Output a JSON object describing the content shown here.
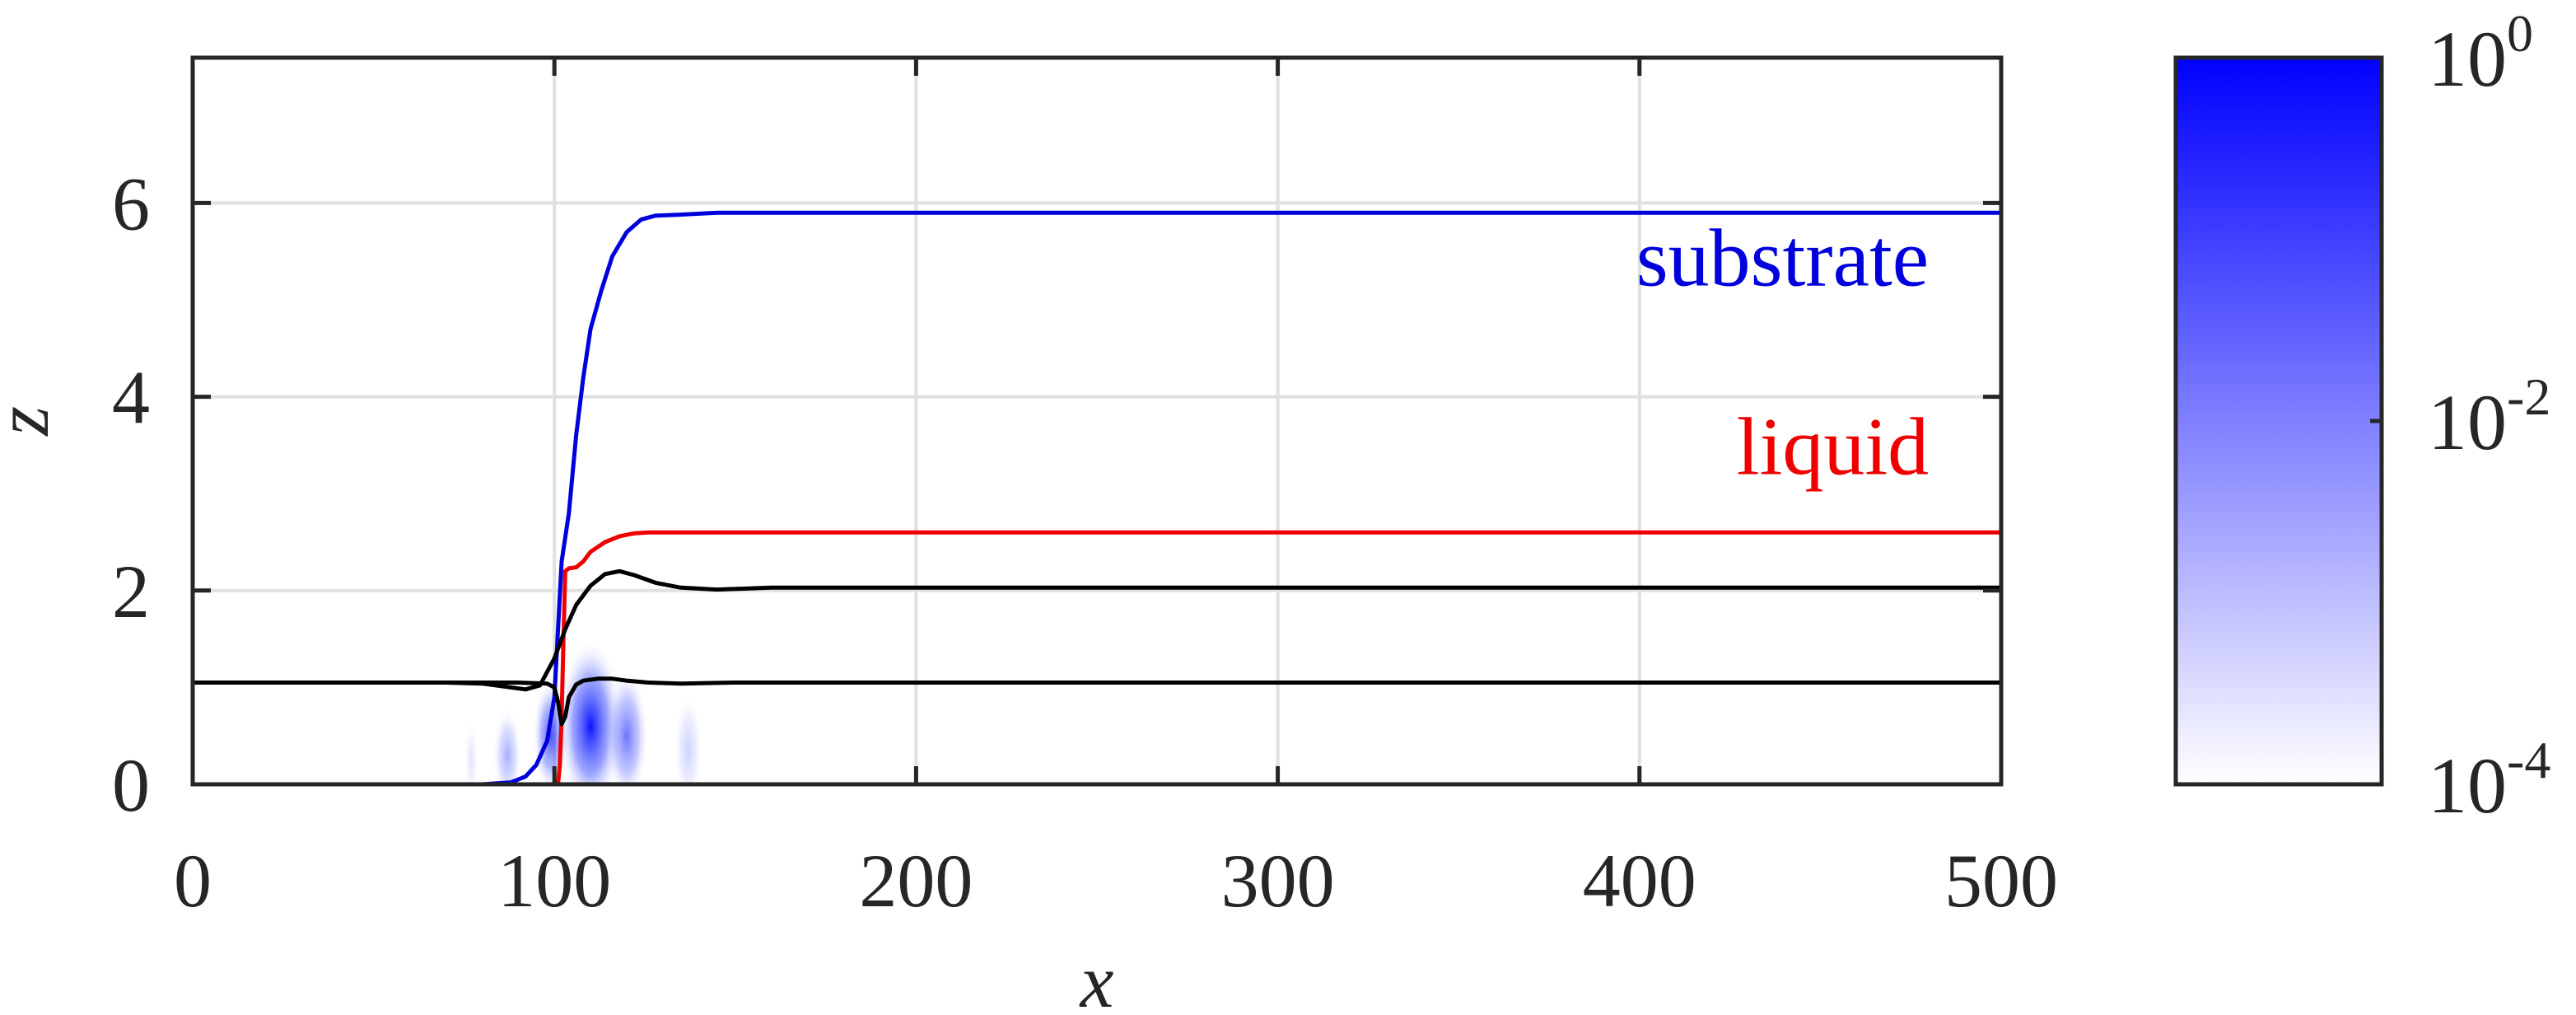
{
  "chart_data": {
    "type": "line",
    "xlabel": "x",
    "ylabel": "z",
    "xlim": [
      0,
      500
    ],
    "ylim": [
      0,
      7.5
    ],
    "xticks": [
      0,
      100,
      200,
      300,
      400,
      500
    ],
    "yticks": [
      0,
      2,
      4,
      6
    ],
    "grid": true,
    "series": [
      {
        "name": "substrate",
        "color": "#0000dd",
        "x": [
          0,
          80,
          88,
          92,
          95,
          98,
          100,
          101,
          102,
          103,
          104,
          106,
          108,
          110,
          113,
          116,
          120,
          124,
          128,
          135,
          145,
          160,
          200,
          300,
          400,
          500
        ],
        "y": [
          0,
          0,
          0.02,
          0.08,
          0.2,
          0.45,
          0.9,
          1.6,
          2.3,
          2.55,
          2.8,
          3.6,
          4.2,
          4.7,
          5.1,
          5.45,
          5.7,
          5.83,
          5.87,
          5.88,
          5.9,
          5.9,
          5.9,
          5.9,
          5.9,
          5.9
        ]
      },
      {
        "name": "liquid",
        "color": "#ee0000",
        "x": [
          0,
          101,
          101.5,
          102,
          102.5,
          103,
          104,
          106,
          108,
          110,
          114,
          118,
          122,
          126,
          135,
          150,
          200,
          300,
          400,
          500
        ],
        "y": [
          0,
          0,
          0.2,
          0.7,
          1.5,
          2.2,
          2.23,
          2.24,
          2.3,
          2.4,
          2.5,
          2.56,
          2.59,
          2.6,
          2.6,
          2.6,
          2.6,
          2.6,
          2.6,
          2.6
        ]
      },
      {
        "color": "#000000",
        "x": [
          0,
          50,
          70,
          80,
          88,
          92,
          96,
          100,
          103,
          106,
          110,
          114,
          118,
          122,
          128,
          135,
          145,
          160,
          200,
          300,
          400,
          500
        ],
        "y": [
          1.05,
          1.05,
          1.05,
          1.04,
          1.0,
          0.98,
          1.02,
          1.3,
          1.6,
          1.85,
          2.05,
          2.17,
          2.2,
          2.16,
          2.08,
          2.03,
          2.01,
          2.03,
          2.03,
          2.03,
          2.03,
          2.03
        ]
      },
      {
        "color": "#000000",
        "x": [
          0,
          90,
          98,
          100,
          101,
          102,
          103,
          104,
          106,
          108,
          112,
          116,
          120,
          126,
          135,
          150,
          200,
          300,
          400,
          500
        ],
        "y": [
          1.05,
          1.05,
          1.04,
          1.0,
          0.85,
          0.62,
          0.7,
          0.9,
          1.03,
          1.07,
          1.09,
          1.09,
          1.07,
          1.05,
          1.04,
          1.05,
          1.05,
          1.05,
          1.05,
          1.05
        ]
      }
    ],
    "annotations": [
      {
        "text": "substrate",
        "color": "#0000dd",
        "x": 480,
        "y": 5.15
      },
      {
        "text": "liquid",
        "color": "#ee0000",
        "x": 480,
        "y": 3.2
      }
    ],
    "heatmap": {
      "description_free": true,
      "color_max": "#0000ff",
      "color_min": "#ffffff",
      "blobs": [
        {
          "x": 110,
          "z": 0.6,
          "width": 9,
          "height": 0.9,
          "intensity": 1.0
        },
        {
          "x": 99,
          "z": 0.5,
          "width": 5,
          "height": 0.6,
          "intensity": 0.75
        },
        {
          "x": 120,
          "z": 0.5,
          "width": 6,
          "height": 0.7,
          "intensity": 0.6
        },
        {
          "x": 87,
          "z": 0.3,
          "width": 4,
          "height": 0.5,
          "intensity": 0.35
        },
        {
          "x": 137,
          "z": 0.35,
          "width": 4,
          "height": 0.6,
          "intensity": 0.2
        },
        {
          "x": 77,
          "z": 0.25,
          "width": 2,
          "height": 0.4,
          "intensity": 0.12
        }
      ]
    },
    "colorbar": {
      "scale": "log",
      "range": [
        0.0001,
        1
      ],
      "tick_base": [
        "10",
        "10",
        "10"
      ],
      "tick_exp": [
        "0",
        "-2",
        "-4"
      ],
      "tick_values": [
        1,
        0.01,
        0.0001
      ]
    }
  }
}
